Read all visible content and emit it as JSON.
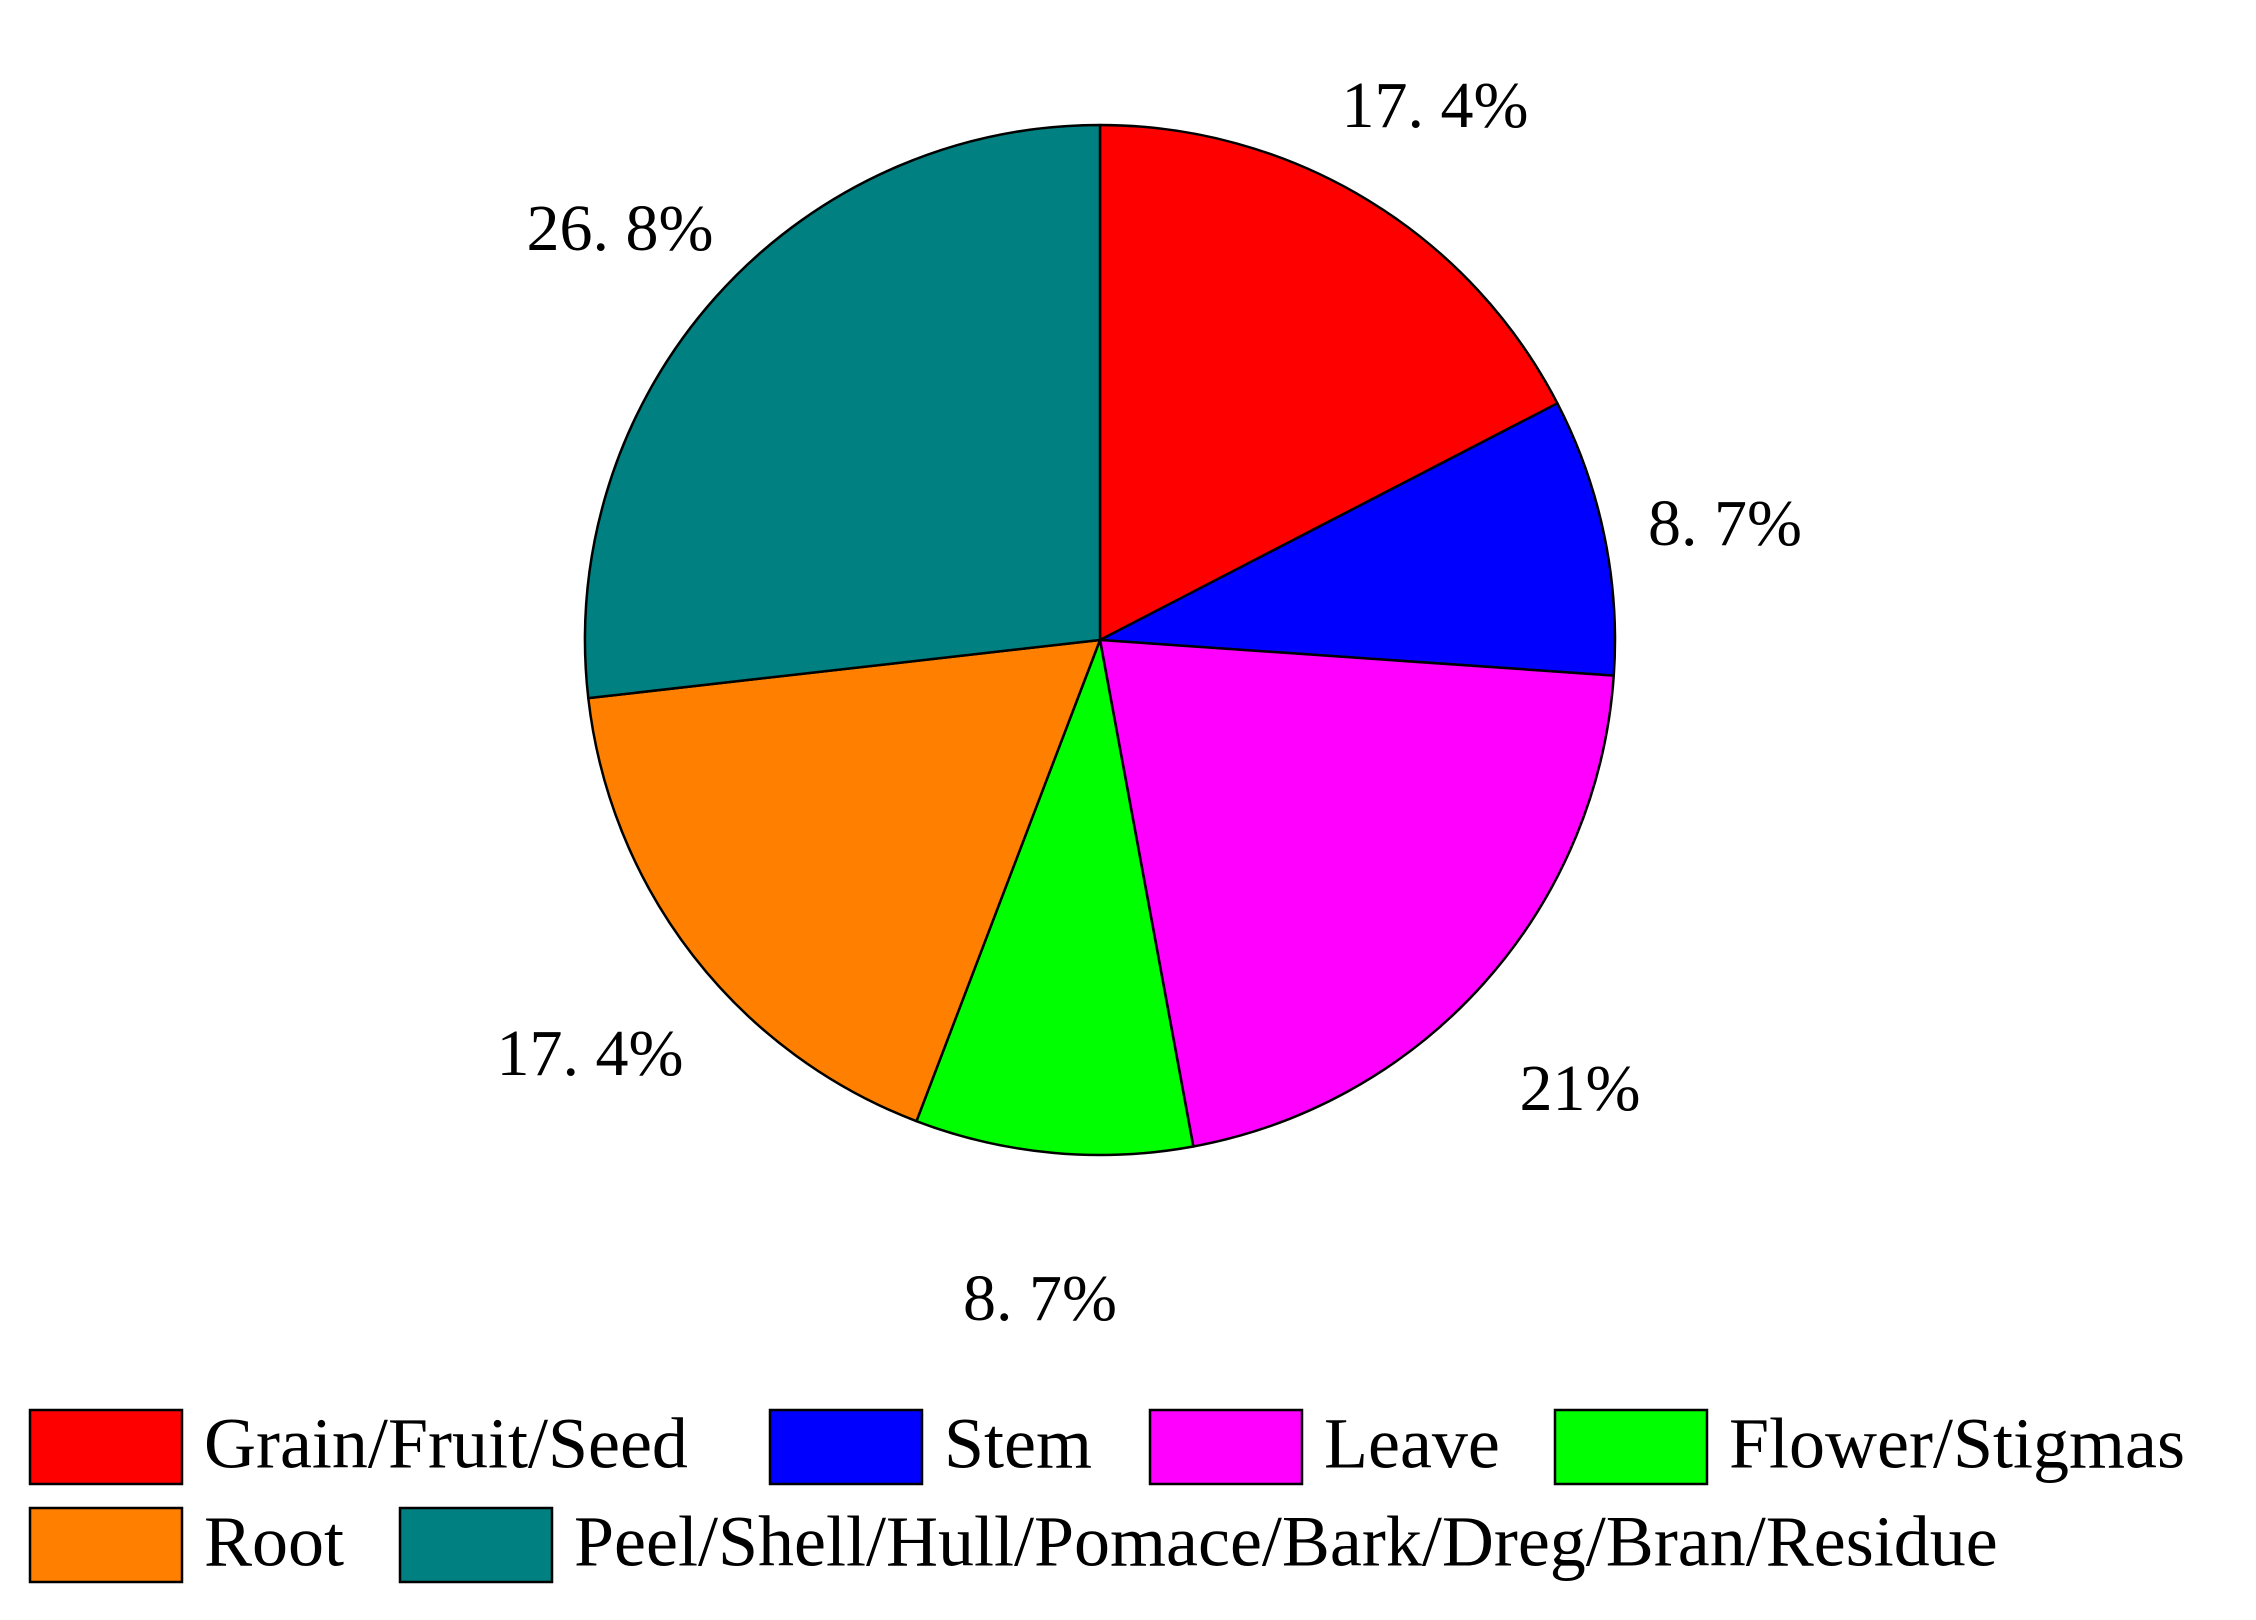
{
  "chart_data": {
    "type": "pie",
    "start": "12 o'clock",
    "direction": "clockwise",
    "legend_position": "bottom",
    "slices": [
      {
        "label": "Grain/Fruit/Seed",
        "value": 17.4,
        "display": "17. 4%",
        "color": "#ff0000"
      },
      {
        "label": "Stem",
        "value": 8.7,
        "display": "8. 7%",
        "color": "#0000ff"
      },
      {
        "label": "Leave",
        "value": 21,
        "display": "21%",
        "color": "#ff00ff"
      },
      {
        "label": "Flower/Stigmas",
        "value": 8.7,
        "display": "8. 7%",
        "color": "#00ff00"
      },
      {
        "label": "Root",
        "value": 17.4,
        "display": "17. 4%",
        "color": "#ff8000"
      },
      {
        "label": "Peel/Shell/Hull/Pomace/Bark/Dreg/Bran/Residue",
        "value": 26.8,
        "display": "26. 8%",
        "color": "#008080"
      }
    ]
  }
}
